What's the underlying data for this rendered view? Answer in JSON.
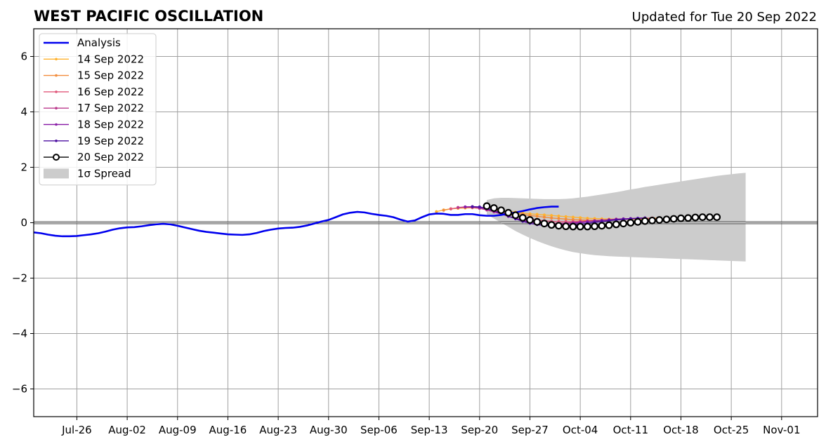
{
  "chart_data": {
    "type": "line",
    "title": "WEST PACIFIC OSCILLATION",
    "subtitle": "Updated for Tue 20 Sep 2022",
    "xlabel": "",
    "ylabel": "",
    "ylim": [
      -7,
      7
    ],
    "xlim": [
      "2022-07-20",
      "2022-11-06"
    ],
    "grid": true,
    "legend_position": "top-left",
    "yticks": [
      -6,
      -4,
      -2,
      0,
      2,
      4,
      6
    ],
    "ytick_labels": [
      "−6",
      "−4",
      "−2",
      "0",
      "2",
      "4",
      "6"
    ],
    "xticks": [
      "2022-07-26",
      "2022-08-02",
      "2022-08-09",
      "2022-08-16",
      "2022-08-23",
      "2022-08-30",
      "2022-09-06",
      "2022-09-13",
      "2022-09-20",
      "2022-09-27",
      "2022-10-04",
      "2022-10-11",
      "2022-10-18",
      "2022-10-25",
      "2022-11-01"
    ],
    "xtick_labels": [
      "Jul-26",
      "Aug-02",
      "Aug-09",
      "Aug-16",
      "Aug-23",
      "Aug-30",
      "Sep-06",
      "Sep-13",
      "Sep-20",
      "Sep-27",
      "Oct-04",
      "Oct-11",
      "Oct-18",
      "Oct-25",
      "Nov-01"
    ],
    "analysis": {
      "name": "Analysis",
      "color": "#0000ee",
      "start": "2022-07-20",
      "values": [
        -0.35,
        -0.38,
        -0.43,
        -0.47,
        -0.49,
        -0.49,
        -0.48,
        -0.45,
        -0.42,
        -0.38,
        -0.32,
        -0.25,
        -0.2,
        -0.17,
        -0.16,
        -0.13,
        -0.09,
        -0.06,
        -0.04,
        -0.06,
        -0.11,
        -0.17,
        -0.23,
        -0.29,
        -0.33,
        -0.36,
        -0.39,
        -0.42,
        -0.43,
        -0.44,
        -0.42,
        -0.37,
        -0.3,
        -0.25,
        -0.21,
        -0.19,
        -0.18,
        -0.15,
        -0.1,
        -0.03,
        0.04,
        0.1,
        0.2,
        0.3,
        0.36,
        0.39,
        0.37,
        0.32,
        0.28,
        0.25,
        0.2,
        0.11,
        0.04,
        0.08,
        0.2,
        0.3,
        0.33,
        0.32,
        0.28,
        0.28,
        0.31,
        0.31,
        0.27,
        0.25,
        0.25,
        0.28,
        0.33,
        0.37,
        0.42,
        0.48,
        0.53,
        0.56,
        0.58,
        0.58
      ]
    },
    "forecasts": [
      {
        "name": "14 Sep 2022",
        "color": "#ffb22e",
        "start": "2022-09-14",
        "values": [
          0.4,
          0.46,
          0.5,
          0.52,
          0.53,
          0.54,
          0.52,
          0.5,
          0.47,
          0.44,
          0.41,
          0.38,
          0.35,
          0.32,
          0.3,
          0.28,
          0.26,
          0.24,
          0.22,
          0.2,
          0.18,
          0.16,
          0.15,
          0.14,
          0.13,
          0.13,
          0.13,
          0.13,
          0.13,
          0.13,
          0.14,
          0.15
        ]
      },
      {
        "name": "15 Sep 2022",
        "color": "#f28c3c",
        "start": "2022-09-15",
        "values": [
          0.45,
          0.5,
          0.53,
          0.55,
          0.54,
          0.52,
          0.49,
          0.46,
          0.42,
          0.38,
          0.34,
          0.3,
          0.26,
          0.23,
          0.2,
          0.17,
          0.15,
          0.13,
          0.11,
          0.1,
          0.09,
          0.09,
          0.09,
          0.1,
          0.11,
          0.12,
          0.13,
          0.14,
          0.15,
          0.16,
          0.17
        ]
      },
      {
        "name": "16 Sep 2022",
        "color": "#e0577a",
        "start": "2022-09-16",
        "values": [
          0.5,
          0.54,
          0.56,
          0.55,
          0.52,
          0.48,
          0.43,
          0.37,
          0.31,
          0.25,
          0.19,
          0.14,
          0.1,
          0.07,
          0.05,
          0.04,
          0.04,
          0.04,
          0.05,
          0.06,
          0.07,
          0.08,
          0.1,
          0.11,
          0.12,
          0.14,
          0.15,
          0.16,
          0.17
        ]
      },
      {
        "name": "17 Sep 2022",
        "color": "#bb3a8c",
        "start": "2022-09-17",
        "values": [
          0.55,
          0.57,
          0.56,
          0.52,
          0.46,
          0.39,
          0.31,
          0.23,
          0.16,
          0.1,
          0.05,
          0.01,
          -0.01,
          -0.02,
          -0.02,
          -0.01,
          0.01,
          0.03,
          0.05,
          0.07,
          0.09,
          0.11,
          0.13,
          0.14,
          0.15,
          0.16,
          0.17
        ]
      },
      {
        "name": "18 Sep 2022",
        "color": "#8a1fa8",
        "start": "2022-09-18",
        "values": [
          0.57,
          0.58,
          0.55,
          0.49,
          0.41,
          0.32,
          0.23,
          0.15,
          0.08,
          0.02,
          -0.02,
          -0.05,
          -0.06,
          -0.05,
          -0.04,
          -0.02,
          0.0,
          0.03,
          0.06,
          0.08,
          0.1,
          0.12,
          0.14,
          0.15,
          0.16,
          0.17
        ]
      },
      {
        "name": "19 Sep 2022",
        "color": "#4b0fa0",
        "start": "2022-09-19",
        "values": [
          0.58,
          0.57,
          0.52,
          0.44,
          0.34,
          0.24,
          0.14,
          0.05,
          -0.02,
          -0.07,
          -0.1,
          -0.11,
          -0.11,
          -0.1,
          -0.08,
          -0.05,
          -0.02,
          0.01,
          0.04,
          0.07,
          0.1,
          0.12,
          0.14,
          0.16,
          0.17
        ]
      }
    ],
    "latest": {
      "name": "20 Sep 2022",
      "color": "#000000",
      "start": "2022-09-21",
      "values": [
        0.6,
        0.53,
        0.45,
        0.36,
        0.27,
        0.18,
        0.1,
        0.03,
        -0.03,
        -0.08,
        -0.11,
        -0.13,
        -0.14,
        -0.14,
        -0.14,
        -0.13,
        -0.11,
        -0.09,
        -0.06,
        -0.03,
        0.0,
        0.03,
        0.06,
        0.08,
        0.1,
        0.12,
        0.14,
        0.16,
        0.17,
        0.19,
        0.2,
        0.2,
        0.2
      ]
    },
    "spread": {
      "name": "1σ Spread",
      "color": "#cccccc",
      "start": "2022-09-21",
      "upper": [
        0.82,
        0.88,
        0.9,
        0.9,
        0.89,
        0.88,
        0.87,
        0.86,
        0.85,
        0.85,
        0.85,
        0.86,
        0.88,
        0.91,
        0.94,
        0.98,
        1.02,
        1.06,
        1.1,
        1.15,
        1.2,
        1.24,
        1.29,
        1.33,
        1.37,
        1.41,
        1.45,
        1.49,
        1.53,
        1.57,
        1.61,
        1.65,
        1.69,
        1.72,
        1.75,
        1.78,
        1.8
      ],
      "lower": [
        0.3,
        0.15,
        0.0,
        -0.15,
        -0.3,
        -0.43,
        -0.55,
        -0.66,
        -0.76,
        -0.85,
        -0.93,
        -1.0,
        -1.06,
        -1.1,
        -1.14,
        -1.17,
        -1.19,
        -1.21,
        -1.22,
        -1.23,
        -1.24,
        -1.25,
        -1.26,
        -1.27,
        -1.28,
        -1.29,
        -1.3,
        -1.31,
        -1.32,
        -1.33,
        -1.34,
        -1.35,
        -1.36,
        -1.37,
        -1.38,
        -1.39,
        -1.4
      ]
    },
    "legend": {
      "analysis_label": "Analysis",
      "spread_label": "1σ Spread"
    }
  }
}
